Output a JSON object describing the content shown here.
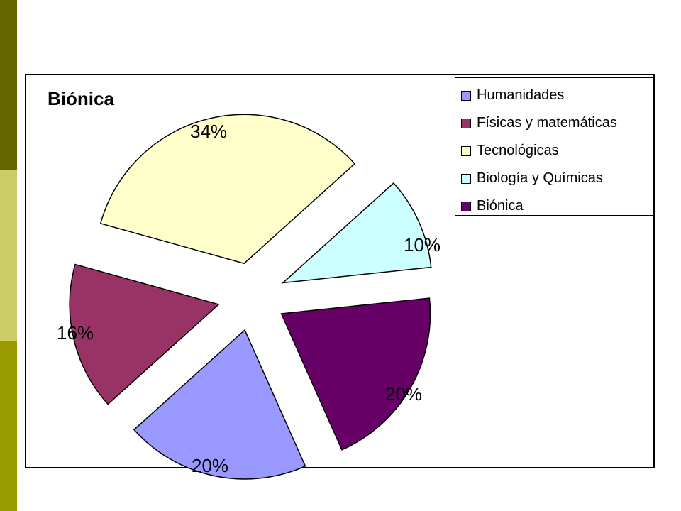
{
  "theme": {
    "stripe_colors": [
      "#666600",
      "#cccc66",
      "#999900"
    ]
  },
  "chart_data": {
    "type": "pie",
    "title": "Biónica",
    "legend_position": "top-right",
    "slices": [
      {
        "name": "Humanidades",
        "value": 20,
        "label": "20%",
        "color": "#9999ff"
      },
      {
        "name": "Físicas y matemáticas",
        "value": 16,
        "label": "16%",
        "color": "#993366"
      },
      {
        "name": "Tecnológicas",
        "value": 34,
        "label": "34%",
        "color": "#ffffcc"
      },
      {
        "name": "Biología y Químicas",
        "value": 10,
        "label": "10%",
        "color": "#ccffff"
      },
      {
        "name": "Biónica",
        "value": 20,
        "label": "20%",
        "color": "#660066"
      }
    ]
  }
}
